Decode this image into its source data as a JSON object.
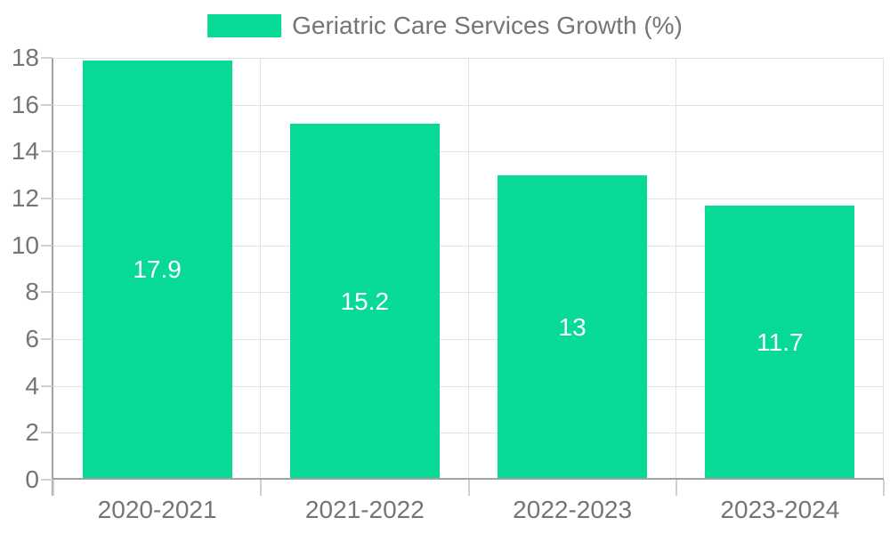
{
  "legend": {
    "label": "Geriatric Care Services Growth (%)"
  },
  "chart_data": {
    "type": "bar",
    "title": "",
    "categories": [
      "2020-2021",
      "2021-2022",
      "2022-2023",
      "2023-2024"
    ],
    "series": [
      {
        "name": "Geriatric Care Services Growth (%)",
        "values": [
          17.9,
          15.2,
          13,
          11.7
        ]
      }
    ],
    "value_labels": [
      "17.9",
      "15.2",
      "13",
      "11.7"
    ],
    "xlabel": "",
    "ylabel": "",
    "ylim": [
      0,
      18
    ],
    "ytick_step": 2,
    "yticks": [
      0,
      2,
      4,
      6,
      8,
      10,
      12,
      14,
      16,
      18
    ],
    "grid": true,
    "legend_position": "top-center",
    "colors": {
      "bar": "#06DA96",
      "grid": "#e3e3e3",
      "axis": "#a3a3a3",
      "tick": "#cfcfcf",
      "text": "#757575",
      "value_label": "#ffffff",
      "background": "#ffffff"
    }
  }
}
